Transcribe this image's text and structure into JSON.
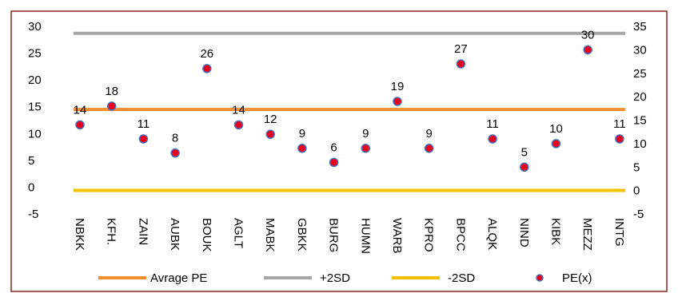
{
  "chart_data": {
    "type": "scatter",
    "categories": [
      "NBKK",
      "KFH.",
      "ZAIN",
      "AUBK",
      "BOUK",
      "AGLT",
      "MABK",
      "GBKK",
      "BURG",
      "HUMN",
      "WARB",
      "KPRO",
      "BPCC",
      "ALQK",
      "NIND",
      "KIBK",
      "MEZZ",
      "INTG"
    ],
    "series": [
      {
        "name": "PE(x)",
        "kind": "points",
        "axis": "right",
        "color": "#e8001c",
        "edge_color": "#4a6fb5",
        "values": [
          14,
          18,
          11,
          8,
          26,
          14,
          12,
          9,
          6,
          9,
          19,
          9,
          27,
          11,
          5,
          10,
          30,
          11
        ]
      },
      {
        "name": "Avrage PE",
        "kind": "line",
        "axis": "left",
        "color": "#f28e2b",
        "value": 14.5
      },
      {
        "name": "+2SD",
        "kind": "line",
        "axis": "left",
        "color": "#a6a6a6",
        "value": 28.7
      },
      {
        "name": "-2SD",
        "kind": "line",
        "axis": "left",
        "color": "#f2c200",
        "value": -0.6
      }
    ],
    "data_labels": [
      "14",
      "18",
      "11",
      "8",
      "26",
      "14",
      "12",
      "9",
      "6",
      "9",
      "19",
      "9",
      "27",
      "11",
      "5",
      "10",
      "30",
      "11"
    ],
    "left_axis": {
      "ylim": [
        -5,
        30
      ],
      "ticks": [
        "30",
        "25",
        "20",
        "15",
        "10",
        "5",
        "0",
        "-5"
      ]
    },
    "right_axis": {
      "ylim": [
        -5,
        35
      ],
      "ticks": [
        "35",
        "30",
        "25",
        "20",
        "15",
        "10",
        "5",
        "0",
        "-5"
      ]
    },
    "legend": [
      "Avrage PE",
      "+2SD",
      "-2SD",
      "PE(x)"
    ],
    "legend_position": "bottom",
    "grid": false,
    "border_color": "#8b2323"
  }
}
